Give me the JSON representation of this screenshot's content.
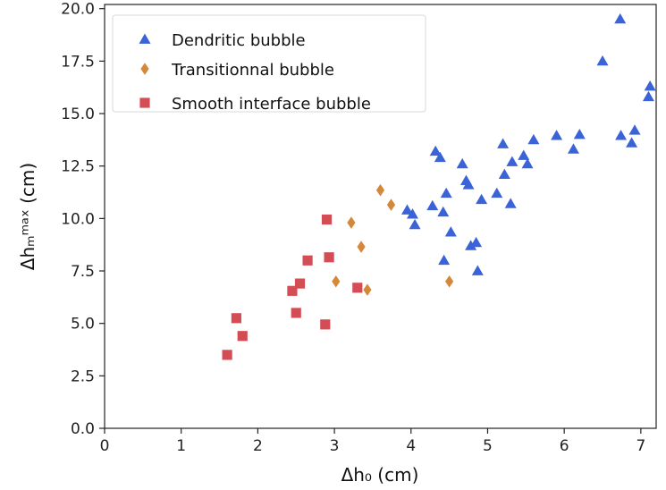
{
  "chart_data": {
    "type": "scatter",
    "title": "",
    "xlabel": "Δh₀ (cm)",
    "ylabel": "Δhₘᵐᵃˣ (cm)",
    "xlim": [
      0,
      7.2
    ],
    "ylim": [
      0,
      20.2
    ],
    "x_ticks": [
      0,
      1,
      2,
      3,
      4,
      5,
      6,
      7
    ],
    "y_ticks": [
      0.0,
      2.5,
      5.0,
      7.5,
      10.0,
      12.5,
      15.0,
      17.5,
      20.0
    ],
    "x_tick_labels": [
      "0",
      "1",
      "2",
      "3",
      "4",
      "5",
      "6",
      "7"
    ],
    "y_tick_labels": [
      "0.0",
      "2.5",
      "5.0",
      "7.5",
      "10.0",
      "12.5",
      "15.0",
      "17.5",
      "20.0"
    ],
    "grid": false,
    "legend_position": "top-left",
    "series": [
      {
        "name": "Dendritic bubble",
        "marker": "triangle",
        "color": "#3a63d8",
        "points": [
          [
            3.95,
            10.4
          ],
          [
            4.02,
            10.2
          ],
          [
            4.05,
            9.7
          ],
          [
            4.28,
            10.6
          ],
          [
            4.32,
            13.2
          ],
          [
            4.38,
            12.9
          ],
          [
            4.42,
            10.3
          ],
          [
            4.43,
            8.0
          ],
          [
            4.46,
            11.2
          ],
          [
            4.52,
            9.35
          ],
          [
            4.67,
            12.6
          ],
          [
            4.72,
            11.8
          ],
          [
            4.75,
            11.6
          ],
          [
            4.78,
            8.7
          ],
          [
            4.85,
            8.85
          ],
          [
            4.87,
            7.5
          ],
          [
            4.92,
            10.9
          ],
          [
            5.12,
            11.2
          ],
          [
            5.2,
            13.55
          ],
          [
            5.22,
            12.1
          ],
          [
            5.3,
            10.7
          ],
          [
            5.32,
            12.7
          ],
          [
            5.47,
            13.0
          ],
          [
            5.52,
            12.6
          ],
          [
            5.6,
            13.75
          ],
          [
            5.9,
            13.95
          ],
          [
            6.12,
            13.3
          ],
          [
            6.2,
            14.0
          ],
          [
            6.5,
            17.5
          ],
          [
            6.73,
            19.5
          ],
          [
            6.74,
            13.95
          ],
          [
            6.88,
            13.6
          ],
          [
            6.92,
            14.2
          ],
          [
            7.1,
            15.8
          ],
          [
            7.12,
            16.3
          ]
        ]
      },
      {
        "name": "Transitionnal bubble",
        "marker": "diamond",
        "color": "#d4883a",
        "points": [
          [
            3.02,
            7.0
          ],
          [
            3.22,
            9.8
          ],
          [
            3.35,
            8.65
          ],
          [
            3.43,
            6.6
          ],
          [
            3.6,
            11.35
          ],
          [
            3.74,
            10.65
          ],
          [
            4.5,
            7.0
          ]
        ]
      },
      {
        "name": "Smooth interface bubble",
        "marker": "square",
        "color": "#d44d55",
        "points": [
          [
            1.6,
            3.5
          ],
          [
            1.72,
            5.25
          ],
          [
            1.8,
            4.4
          ],
          [
            2.45,
            6.55
          ],
          [
            2.5,
            5.5
          ],
          [
            2.55,
            6.9
          ],
          [
            2.65,
            8.0
          ],
          [
            2.88,
            4.95
          ],
          [
            2.9,
            9.95
          ],
          [
            2.93,
            8.15
          ],
          [
            3.3,
            6.7
          ]
        ]
      }
    ]
  }
}
